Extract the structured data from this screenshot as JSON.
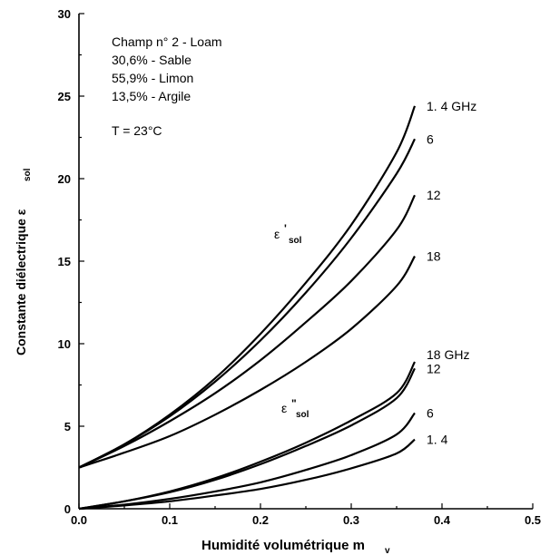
{
  "chart_data": {
    "type": "line",
    "xlabel": "Humidité volumétrique m",
    "xlabel_sub": "v",
    "ylabel": "Constante diélectrique  ε",
    "ylabel_sub": "sol",
    "xlim": [
      0.0,
      0.5
    ],
    "ylim": [
      0,
      30
    ],
    "xticks": [
      "0.0",
      "0.1",
      "0.2",
      "0.3",
      "0.4",
      "0.5"
    ],
    "yticks": [
      "0",
      "5",
      "10",
      "15",
      "20",
      "25",
      "30"
    ],
    "annotations": {
      "lines": [
        "Champ n° 2 - Loam",
        "30,6% - Sable",
        "55,9% - Limon",
        "13,5% - Argile"
      ],
      "temperature": "T = 23°C"
    },
    "group_labels": {
      "real": {
        "main": "ε",
        "mark": "'",
        "sub": "sol"
      },
      "imag": {
        "main": "ε",
        "mark": "\"",
        "sub": "sol"
      }
    },
    "series": [
      {
        "name": "ε'sol 1.4 GHz",
        "label": "1. 4 GHz",
        "x": [
          0.0,
          0.05,
          0.1,
          0.15,
          0.2,
          0.25,
          0.3,
          0.35,
          0.37
        ],
        "y": [
          2.5,
          3.9,
          5.7,
          7.9,
          10.6,
          13.7,
          17.2,
          21.6,
          24.4
        ]
      },
      {
        "name": "ε'sol 6 GHz",
        "label": "6",
        "x": [
          0.0,
          0.05,
          0.1,
          0.15,
          0.2,
          0.25,
          0.3,
          0.35,
          0.37
        ],
        "y": [
          2.5,
          3.9,
          5.6,
          7.7,
          10.2,
          13.1,
          16.4,
          20.3,
          22.4
        ]
      },
      {
        "name": "ε'sol 12 GHz",
        "label": "12",
        "x": [
          0.0,
          0.05,
          0.1,
          0.15,
          0.2,
          0.25,
          0.3,
          0.35,
          0.37
        ],
        "y": [
          2.5,
          3.8,
          5.3,
          7.0,
          9.0,
          11.3,
          13.8,
          16.9,
          19.0
        ]
      },
      {
        "name": "ε'sol 18 GHz",
        "label": "18",
        "x": [
          0.0,
          0.05,
          0.1,
          0.15,
          0.2,
          0.25,
          0.3,
          0.35,
          0.37
        ],
        "y": [
          2.5,
          3.4,
          4.4,
          5.7,
          7.2,
          8.9,
          10.9,
          13.5,
          15.3
        ]
      },
      {
        "name": "ε\"sol 18 GHz",
        "label": "18 GHz",
        "x": [
          0.0,
          0.05,
          0.1,
          0.15,
          0.2,
          0.25,
          0.3,
          0.35,
          0.37
        ],
        "y": [
          0.0,
          0.45,
          1.05,
          1.85,
          2.85,
          4.0,
          5.35,
          7.0,
          8.9
        ]
      },
      {
        "name": "ε\"sol 12 GHz",
        "label": "12",
        "x": [
          0.0,
          0.05,
          0.1,
          0.15,
          0.2,
          0.25,
          0.3,
          0.35,
          0.37
        ],
        "y": [
          0.0,
          0.45,
          1.0,
          1.75,
          2.7,
          3.8,
          5.05,
          6.7,
          8.5
        ]
      },
      {
        "name": "ε\"sol 6 GHz",
        "label": "6",
        "x": [
          0.0,
          0.05,
          0.1,
          0.15,
          0.2,
          0.25,
          0.3,
          0.35,
          0.37
        ],
        "y": [
          0.0,
          0.25,
          0.6,
          1.05,
          1.6,
          2.35,
          3.25,
          4.5,
          5.8
        ]
      },
      {
        "name": "ε\"sol 1.4 GHz",
        "label": "1. 4",
        "x": [
          0.0,
          0.05,
          0.1,
          0.15,
          0.2,
          0.25,
          0.3,
          0.35,
          0.37
        ],
        "y": [
          0.0,
          0.2,
          0.45,
          0.8,
          1.2,
          1.75,
          2.45,
          3.35,
          4.2
        ]
      }
    ]
  }
}
